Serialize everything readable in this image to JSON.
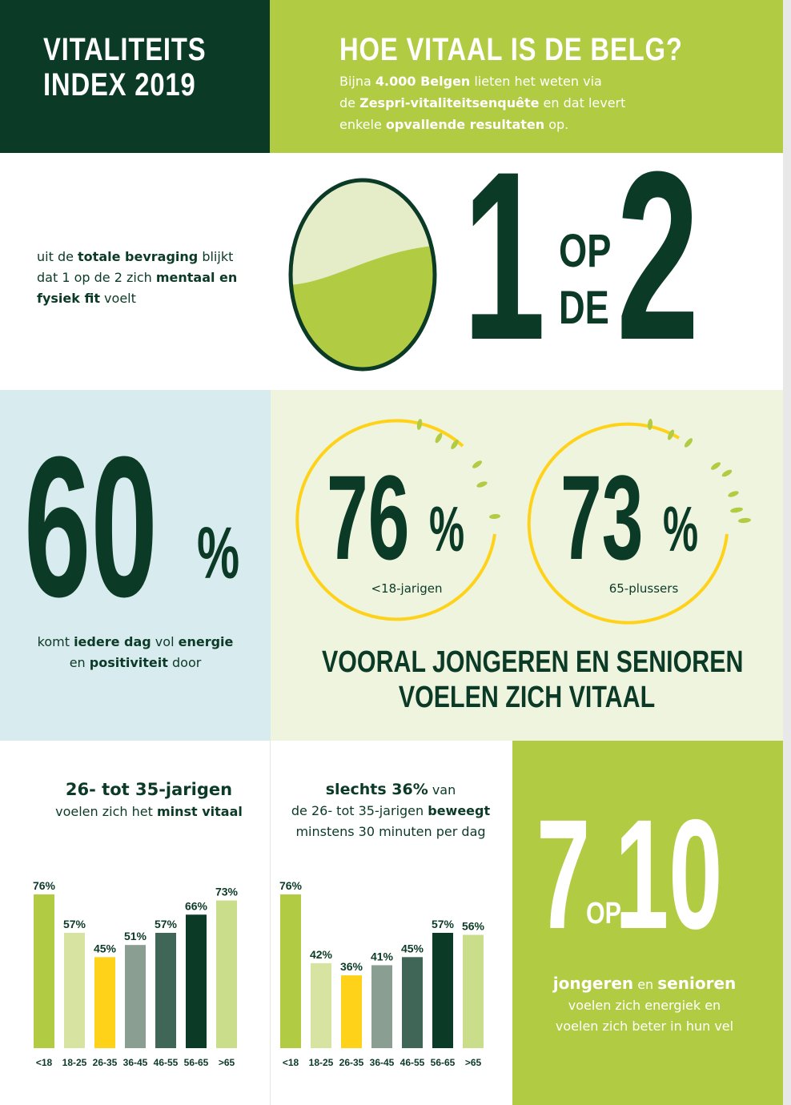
{
  "header": {
    "title_line1": "VITALITEITS",
    "title_line2": "INDEX 2019",
    "headline": "HOE VITAAL IS DE BELG?",
    "intro": {
      "p1": "Bijna ",
      "b1": "4.000 Belgen",
      "p2": " lieten het weten via",
      "p3": "de ",
      "b2": "Zespri-vitaliteitsenquête",
      "p4": " en dat levert",
      "p5": "enkele ",
      "b3": "opvallende resultaten",
      "p6": " op."
    }
  },
  "stat_one_in_two": {
    "text": {
      "p1": "uit de ",
      "b1": "totale bevraging",
      "p2": " blijkt",
      "p3": "dat 1 op de 2 zich ",
      "b2": "mentaal en",
      "b3": "fysiek fit",
      "p4": " voelt"
    },
    "numerator": "1",
    "word_op": "OP",
    "word_de": "DE",
    "denominator": "2",
    "fill_fraction": 0.5
  },
  "stat_sixty": {
    "number": "60",
    "percent": "%",
    "text": {
      "p1": "komt ",
      "b1": "iedere dag",
      "p2": " vol ",
      "b2": "energie",
      "p3": "en ",
      "b3": "positiviteit",
      "p4": " door"
    }
  },
  "circles": [
    {
      "number": "76",
      "percent": "%",
      "label": "<18-jarigen"
    },
    {
      "number": "73",
      "percent": "%",
      "label": "65-plussers"
    }
  ],
  "circles_caption": {
    "line1": "VOORAL JONGEREN EN SENIOREN",
    "line2": "VOELEN ZICH VITAAL"
  },
  "chart1_heading": {
    "title": "26- tot 35-jarigen",
    "p1": "voelen zich het ",
    "b1": "minst vitaal"
  },
  "chart2_heading": {
    "b1": "slechts 36%",
    "p1": " van",
    "p2": "de 26- tot 35-jarigen ",
    "b2": "beweegt",
    "p3": "minstens 30 minuten per dag"
  },
  "seven_of_ten": {
    "numerator": "7",
    "word_op": "OP",
    "denominator": "10",
    "text": {
      "b1": "jongeren",
      "p1": " en ",
      "b2": "senioren",
      "p2": "voelen zich energiek en",
      "p3": "voelen zich beter in hun vel"
    }
  },
  "colors": {
    "dark_green": "#0b3a26",
    "lime": "#b1cb42",
    "pale_lime": "#d6e3a1",
    "yellow": "#ffd21a",
    "grey_green": "#8a9e92",
    "mid_green": "#3f6657",
    "light_lime": "#c9dd8a"
  },
  "chart_data": [
    {
      "type": "bar",
      "categories": [
        "<18",
        "18-25",
        "26-35",
        "36-45",
        "46-55",
        "56-65",
        ">65"
      ],
      "values": [
        76,
        57,
        45,
        51,
        57,
        66,
        73
      ],
      "value_labels": [
        "76%",
        "57%",
        "45%",
        "51%",
        "57%",
        "66%",
        "73%"
      ],
      "bar_colors": [
        "#b1cb42",
        "#d6e3a1",
        "#ffd21a",
        "#8a9e92",
        "#3f6657",
        "#0b3a26",
        "#c9dd8a"
      ],
      "title": "",
      "xlabel": "",
      "ylabel": "",
      "ylim": [
        0,
        76
      ],
      "grid": false,
      "legend": "none"
    },
    {
      "type": "bar",
      "categories": [
        "<18",
        "18-25",
        "26-35",
        "36-45",
        "46-55",
        "56-65",
        ">65"
      ],
      "values": [
        76,
        42,
        36,
        41,
        45,
        57,
        56
      ],
      "value_labels": [
        "76%",
        "42%",
        "36%",
        "41%",
        "45%",
        "57%",
        "56%"
      ],
      "bar_colors": [
        "#b1cb42",
        "#d6e3a1",
        "#ffd21a",
        "#8a9e92",
        "#3f6657",
        "#0b3a26",
        "#c9dd8a"
      ],
      "title": "",
      "xlabel": "",
      "ylabel": "",
      "ylim": [
        0,
        76
      ],
      "grid": false,
      "legend": "none"
    }
  ]
}
